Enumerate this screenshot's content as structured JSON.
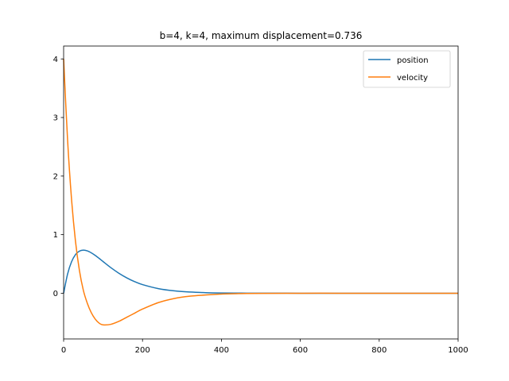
{
  "chart_data": {
    "type": "line",
    "title": "b=4, k=4, maximum displacement=0.736",
    "xlabel": "",
    "ylabel": "",
    "xlim": [
      0,
      1000
    ],
    "ylim": [
      -0.78,
      4.22
    ],
    "x_ticks": [
      0,
      200,
      400,
      600,
      800,
      1000
    ],
    "y_ticks": [
      0,
      1,
      2,
      3,
      4
    ],
    "x_tick_labels": [
      "0",
      "200",
      "400",
      "600",
      "800",
      "1000"
    ],
    "y_tick_labels": [
      "0",
      "1",
      "2",
      "3",
      "4"
    ],
    "grid": false,
    "legend_position": "top-right",
    "x": [
      0,
      10,
      20,
      30,
      40,
      50,
      60,
      70,
      80,
      90,
      100,
      120,
      140,
      160,
      180,
      200,
      240,
      280,
      320,
      360,
      400,
      450,
      500,
      600,
      700,
      800,
      900,
      1000
    ],
    "series": [
      {
        "name": "position",
        "color": "#1f77b4",
        "values": [
          0.0,
          0.327,
          0.536,
          0.659,
          0.719,
          0.736,
          0.723,
          0.69,
          0.646,
          0.595,
          0.541,
          0.435,
          0.342,
          0.263,
          0.198,
          0.147,
          0.079,
          0.041,
          0.021,
          0.01,
          0.005,
          0.002,
          0.001,
          0.0,
          0.0,
          0.0,
          0.0,
          0.0
        ]
      },
      {
        "name": "velocity",
        "color": "#ff7f0e",
        "values": [
          4.0,
          2.62,
          1.61,
          0.89,
          0.39,
          0.05,
          -0.17,
          -0.33,
          -0.44,
          -0.51,
          -0.54,
          -0.53,
          -0.48,
          -0.41,
          -0.34,
          -0.27,
          -0.16,
          -0.09,
          -0.05,
          -0.03,
          -0.014,
          -0.006,
          -0.002,
          0.0,
          0.0,
          0.0,
          0.0,
          0.0
        ]
      }
    ]
  }
}
